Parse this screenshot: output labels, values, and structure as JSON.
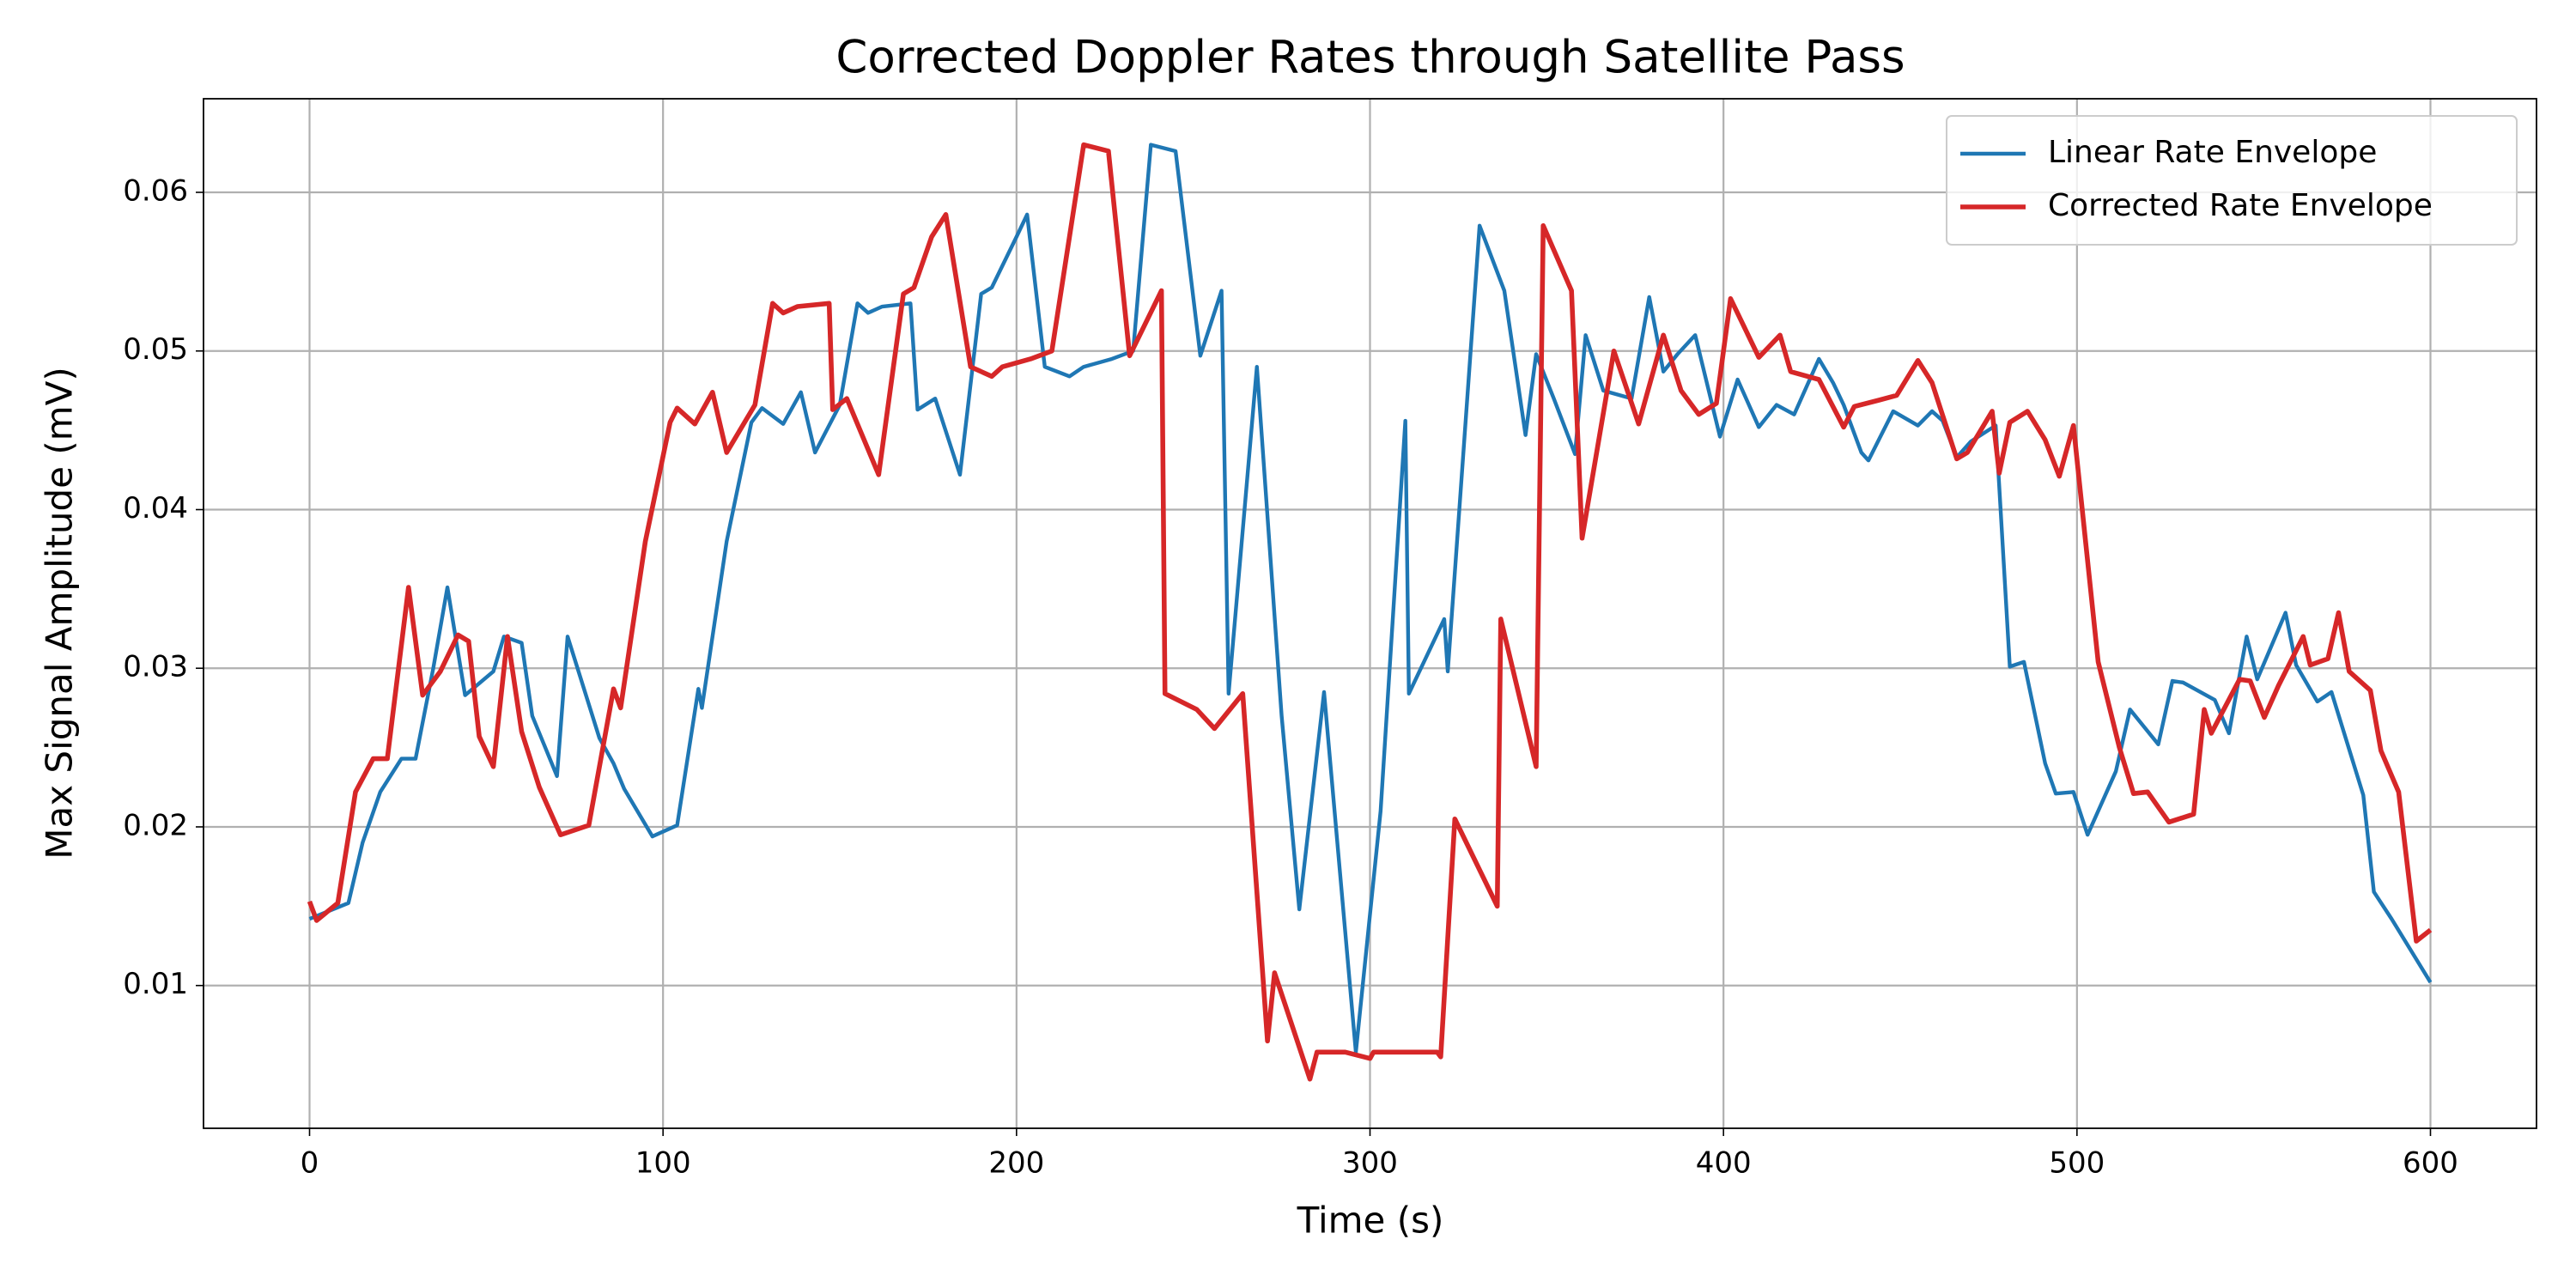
{
  "chart_data": {
    "type": "line",
    "title": "Corrected Doppler Rates through Satellite Pass",
    "xlabel": "Time (s)",
    "ylabel": "Max Signal Amplitude (mV)",
    "xlim": [
      -30,
      630
    ],
    "ylim": [
      0.001,
      0.0659
    ],
    "xticks": [
      0,
      100,
      200,
      300,
      400,
      500,
      600
    ],
    "yticks": [
      0.01,
      0.02,
      0.03,
      0.04,
      0.05,
      0.06
    ],
    "grid": true,
    "legend": "upper right",
    "series": [
      {
        "name": "Linear Rate Envelope",
        "color": "#1f77b4",
        "x": [
          0,
          11,
          15,
          20,
          26,
          30,
          35,
          39,
          44,
          52,
          55,
          60,
          63,
          70,
          73,
          82,
          86,
          89,
          97,
          104,
          110,
          111,
          118,
          125,
          128,
          134,
          139,
          143,
          150,
          155,
          158,
          162,
          170,
          172,
          177,
          184,
          190,
          193,
          200,
          203,
          208,
          215,
          219,
          227,
          233,
          238,
          245,
          252,
          258,
          260,
          268,
          275,
          280,
          287,
          296,
          303,
          310,
          311,
          321,
          322,
          331,
          338,
          344,
          347,
          352,
          358,
          361,
          366,
          374,
          379,
          383,
          387,
          392,
          399,
          404,
          410,
          415,
          420,
          427,
          431,
          434,
          439,
          441,
          448,
          455,
          459,
          462,
          466,
          470,
          477,
          481,
          485,
          491,
          494,
          499,
          503,
          511,
          515,
          523,
          527,
          530,
          539,
          543,
          548,
          551,
          559,
          562,
          568,
          572,
          581,
          584,
          589,
          600
        ],
        "values": [
          0.0142,
          0.0152,
          0.019,
          0.0222,
          0.0243,
          0.0243,
          0.03,
          0.0351,
          0.0283,
          0.0298,
          0.032,
          0.0316,
          0.027,
          0.0232,
          0.032,
          0.0256,
          0.024,
          0.0224,
          0.0194,
          0.0201,
          0.0287,
          0.0275,
          0.038,
          0.0455,
          0.0464,
          0.0454,
          0.0474,
          0.0436,
          0.0466,
          0.053,
          0.0524,
          0.0528,
          0.053,
          0.0463,
          0.047,
          0.0422,
          0.0536,
          0.054,
          0.0572,
          0.0586,
          0.049,
          0.0484,
          0.049,
          0.0495,
          0.05,
          0.063,
          0.0626,
          0.0497,
          0.0538,
          0.0284,
          0.049,
          0.027,
          0.0148,
          0.0285,
          0.0058,
          0.021,
          0.0456,
          0.0284,
          0.0331,
          0.0298,
          0.0579,
          0.0538,
          0.0447,
          0.0498,
          0.047,
          0.0435,
          0.051,
          0.0475,
          0.047,
          0.0534,
          0.0487,
          0.0498,
          0.051,
          0.0446,
          0.0482,
          0.0452,
          0.0466,
          0.046,
          0.0495,
          0.048,
          0.0466,
          0.0436,
          0.0431,
          0.0462,
          0.0453,
          0.0462,
          0.0456,
          0.0433,
          0.0443,
          0.0453,
          0.0301,
          0.0304,
          0.024,
          0.0221,
          0.0222,
          0.0195,
          0.0235,
          0.0274,
          0.0252,
          0.0292,
          0.0291,
          0.028,
          0.0259,
          0.032,
          0.0293,
          0.0335,
          0.0302,
          0.0279,
          0.0285,
          0.022,
          0.0159,
          0.0142,
          0.0102
        ]
      },
      {
        "name": "Corrected Rate Envelope",
        "color": "#d62728",
        "x": [
          0,
          2,
          8,
          13,
          18,
          22,
          28,
          32,
          37,
          42,
          45,
          48,
          52,
          56,
          60,
          65,
          71,
          79,
          86,
          88,
          95,
          102,
          104,
          109,
          114,
          118,
          126,
          131,
          134,
          138,
          147,
          148,
          152,
          161,
          168,
          171,
          176,
          180,
          187,
          193,
          196,
          204,
          210,
          219,
          226,
          232,
          241,
          242,
          251,
          256,
          264,
          271,
          273,
          283,
          285,
          293,
          300,
          301,
          319,
          320,
          324,
          336,
          337,
          347,
          349,
          357,
          360,
          369,
          376,
          383,
          388,
          393,
          398,
          402,
          410,
          416,
          419,
          427,
          434,
          437,
          444,
          449,
          455,
          459,
          466,
          469,
          476,
          478,
          481,
          486,
          491,
          495,
          499,
          506,
          512,
          516,
          520,
          526,
          533,
          536,
          538,
          546,
          549,
          553,
          557,
          564,
          566,
          571,
          574,
          577,
          583,
          586,
          591,
          596,
          600
        ],
        "values": [
          0.0153,
          0.0141,
          0.0152,
          0.0222,
          0.0243,
          0.0243,
          0.0351,
          0.0283,
          0.0298,
          0.0321,
          0.0317,
          0.0257,
          0.0238,
          0.032,
          0.026,
          0.0225,
          0.0195,
          0.0201,
          0.0287,
          0.0275,
          0.038,
          0.0455,
          0.0464,
          0.0454,
          0.0474,
          0.0436,
          0.0466,
          0.053,
          0.0524,
          0.0528,
          0.053,
          0.0463,
          0.047,
          0.0422,
          0.0536,
          0.054,
          0.0572,
          0.0586,
          0.049,
          0.0484,
          0.049,
          0.0495,
          0.05,
          0.063,
          0.0626,
          0.0497,
          0.0538,
          0.0284,
          0.0274,
          0.0262,
          0.0284,
          0.0065,
          0.0108,
          0.0041,
          0.0058,
          0.0058,
          0.0054,
          0.0058,
          0.0058,
          0.0055,
          0.0205,
          0.015,
          0.0331,
          0.0238,
          0.0579,
          0.0538,
          0.0382,
          0.05,
          0.0454,
          0.051,
          0.0475,
          0.046,
          0.0467,
          0.0533,
          0.0496,
          0.051,
          0.0487,
          0.0482,
          0.0452,
          0.0465,
          0.0469,
          0.0472,
          0.0494,
          0.048,
          0.0432,
          0.0436,
          0.0462,
          0.0423,
          0.0455,
          0.0462,
          0.0444,
          0.0421,
          0.0453,
          0.0304,
          0.025,
          0.0221,
          0.0222,
          0.0203,
          0.0208,
          0.0274,
          0.0259,
          0.0293,
          0.0292,
          0.0269,
          0.0289,
          0.032,
          0.0302,
          0.0306,
          0.0335,
          0.0298,
          0.0286,
          0.0248,
          0.0222,
          0.0128,
          0.0135
        ]
      }
    ]
  }
}
